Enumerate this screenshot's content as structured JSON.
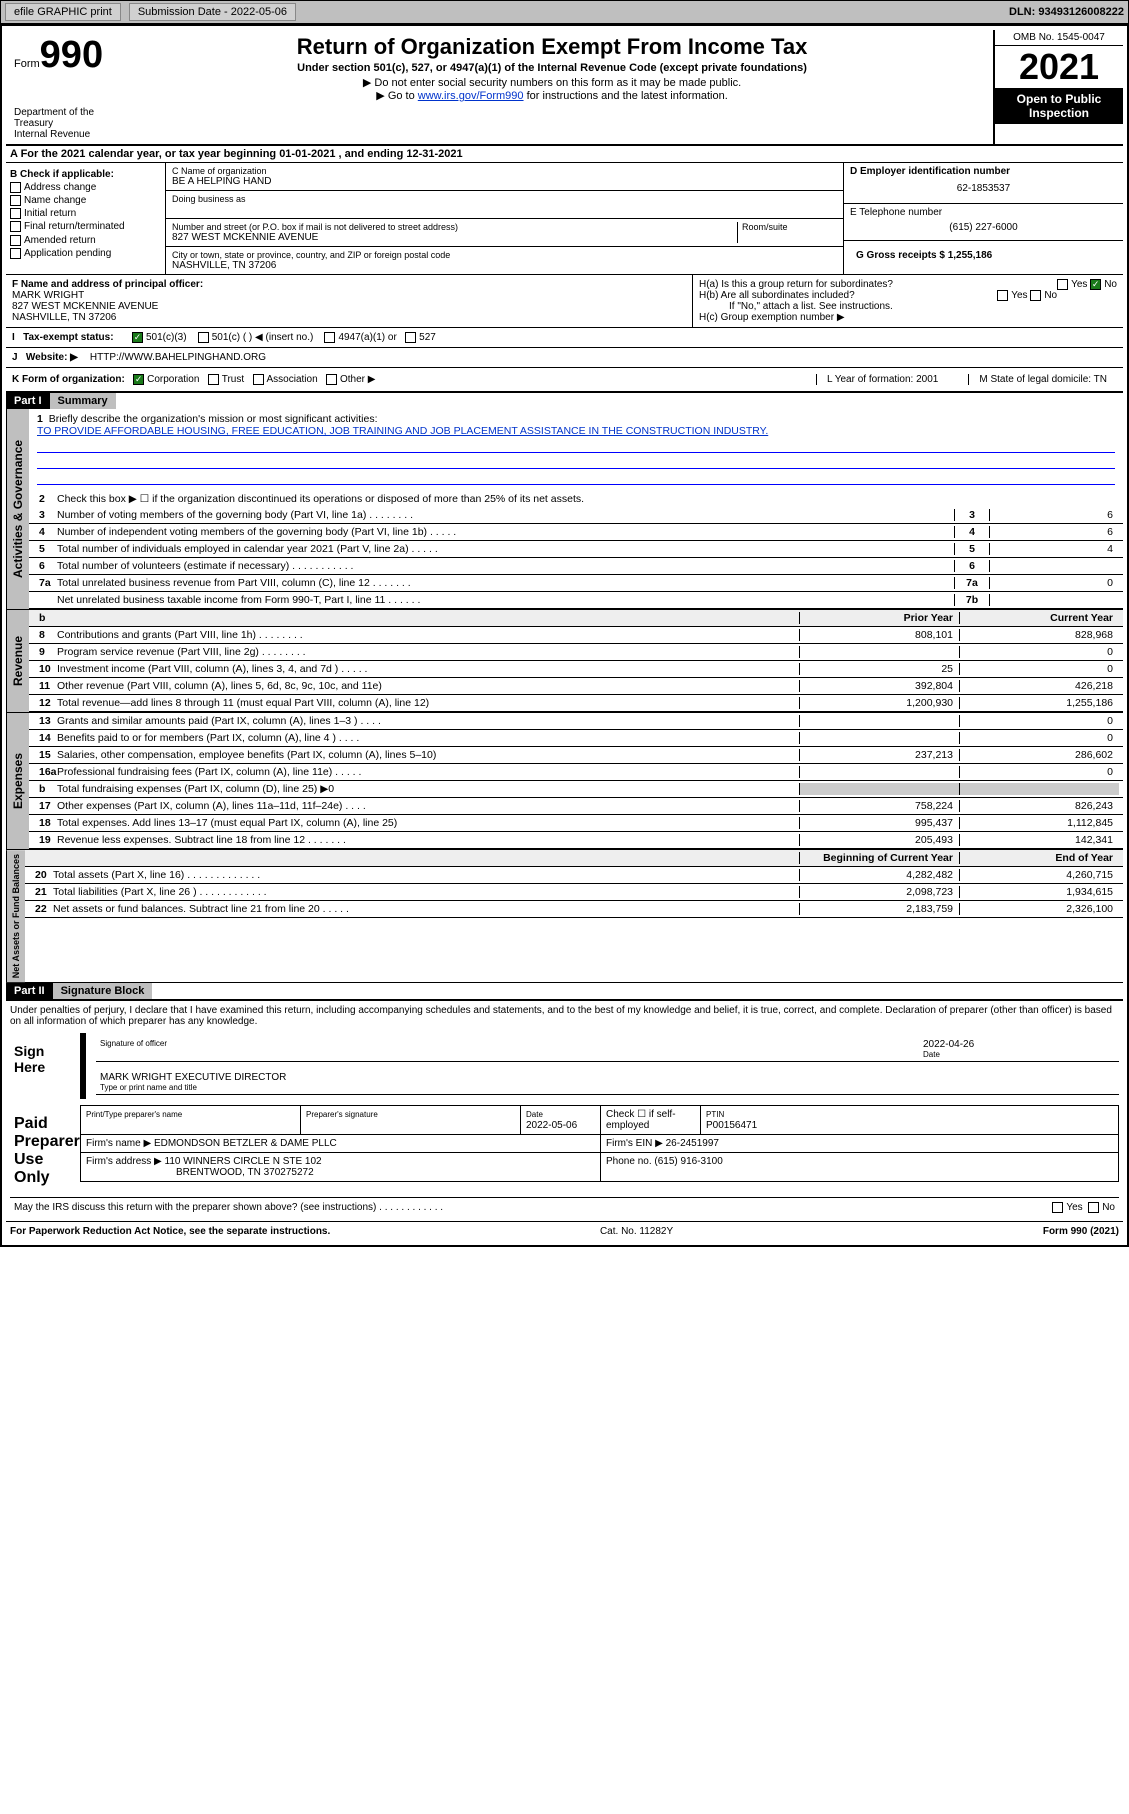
{
  "topbar": {
    "efile": "efile GRAPHIC print",
    "subdate_label": "Submission Date - 2022-05-06",
    "dln": "DLN: 93493126008222"
  },
  "header": {
    "form_label": "Form",
    "form_num": "990",
    "title": "Return of Organization Exempt From Income Tax",
    "subtitle": "Under section 501(c), 527, or 4947(a)(1) of the Internal Revenue Code (except private foundations)",
    "note1": "▶ Do not enter social security numbers on this form as it may be made public.",
    "note2_pre": "▶ Go to ",
    "note2_link": "www.irs.gov/Form990",
    "note2_post": " for instructions and the latest information.",
    "omb": "OMB No. 1545-0047",
    "year": "2021",
    "inspect": "Open to Public Inspection",
    "dept": "Department of the Treasury\nInternal Revenue Service"
  },
  "section_a": "A For the 2021 calendar year, or tax year beginning 01-01-2021    , and ending 12-31-2021",
  "col_b": {
    "title": "B Check if applicable:",
    "items": [
      "Address change",
      "Name change",
      "Initial return",
      "Final return/terminated",
      "Amended return",
      "Application pending"
    ]
  },
  "col_c": {
    "name_label": "C Name of organization",
    "name": "BE A HELPING HAND",
    "dba_label": "Doing business as",
    "addr_label": "Number and street (or P.O. box if mail is not delivered to street address)",
    "room_label": "Room/suite",
    "addr": "827 WEST MCKENNIE AVENUE",
    "city_label": "City or town, state or province, country, and ZIP or foreign postal code",
    "city": "NASHVILLE, TN  37206"
  },
  "col_d": {
    "ein_label": "D Employer identification number",
    "ein": "62-1853537",
    "phone_label": "E Telephone number",
    "phone": "(615) 227-6000",
    "gross_label": "G Gross receipts $ 1,255,186"
  },
  "row_f": {
    "label": "F Name and address of principal officer:",
    "name": "MARK WRIGHT",
    "addr1": "827 WEST MCKENNIE AVENUE",
    "addr2": "NASHVILLE, TN  37206"
  },
  "row_h": {
    "a": "H(a)  Is this a group return for subordinates?",
    "a_no": "No",
    "b": "H(b)  Are all subordinates included?",
    "b_note": "If \"No,\" attach a list. See instructions.",
    "c": "H(c)  Group exemption number ▶"
  },
  "row_i": {
    "label": "Tax-exempt status:",
    "opts": [
      "501(c)(3)",
      "501(c) (  ) ◀ (insert no.)",
      "4947(a)(1) or",
      "527"
    ]
  },
  "row_j": {
    "label": "Website: ▶",
    "url": "HTTP://WWW.BAHELPINGHAND.ORG"
  },
  "row_k": {
    "label": "K Form of organization:",
    "opts": [
      "Corporation",
      "Trust",
      "Association",
      "Other ▶"
    ],
    "l": "L Year of formation: 2001",
    "m": "M State of legal domicile: TN"
  },
  "part1": {
    "hdr": "Part I",
    "title": "Summary",
    "q1": "Briefly describe the organization's mission or most significant activities:",
    "mission": "TO PROVIDE AFFORDABLE HOUSING, FREE EDUCATION, JOB TRAINING AND JOB PLACEMENT ASSISTANCE IN THE CONSTRUCTION INDUSTRY.",
    "q2": "Check this box ▶ ☐  if the organization discontinued its operations or disposed of more than 25% of its net assets.",
    "tabs": {
      "gov": "Activities & Governance",
      "rev": "Revenue",
      "exp": "Expenses",
      "net": "Net Assets or Fund Balances"
    },
    "lines_gov": [
      {
        "n": "3",
        "t": "Number of voting members of the governing body (Part VI, line 1a)  .   .   .   .   .   .   .   .",
        "b": "3",
        "v": "6"
      },
      {
        "n": "4",
        "t": "Number of independent voting members of the governing body (Part VI, line 1b)  .   .   .   .   .",
        "b": "4",
        "v": "6"
      },
      {
        "n": "5",
        "t": "Total number of individuals employed in calendar year 2021 (Part V, line 2a)  .   .   .   .   .",
        "b": "5",
        "v": "4"
      },
      {
        "n": "6",
        "t": "Total number of volunteers (estimate if necessary)  .   .   .   .   .   .   .   .   .   .   .",
        "b": "6",
        "v": ""
      },
      {
        "n": "7a",
        "t": "Total unrelated business revenue from Part VIII, column (C), line 12  .   .   .   .   .   .   .",
        "b": "7a",
        "v": "0"
      },
      {
        "n": "",
        "t": "Net unrelated business taxable income from Form 990-T, Part I, line 11  .   .   .   .   .   .",
        "b": "7b",
        "v": ""
      }
    ],
    "col_hdrs": {
      "py": "Prior Year",
      "cy": "Current Year"
    },
    "lines_rev": [
      {
        "n": "8",
        "t": "Contributions and grants (Part VIII, line 1h)  .   .   .   .   .   .   .   .",
        "py": "808,101",
        "cy": "828,968"
      },
      {
        "n": "9",
        "t": "Program service revenue (Part VIII, line 2g)  .   .   .   .   .   .   .   .",
        "py": "",
        "cy": "0"
      },
      {
        "n": "10",
        "t": "Investment income (Part VIII, column (A), lines 3, 4, and 7d )  .   .   .   .   .",
        "py": "25",
        "cy": "0"
      },
      {
        "n": "11",
        "t": "Other revenue (Part VIII, column (A), lines 5, 6d, 8c, 9c, 10c, and 11e)",
        "py": "392,804",
        "cy": "426,218"
      },
      {
        "n": "12",
        "t": "Total revenue—add lines 8 through 11 (must equal Part VIII, column (A), line 12)",
        "py": "1,200,930",
        "cy": "1,255,186"
      }
    ],
    "lines_exp": [
      {
        "n": "13",
        "t": "Grants and similar amounts paid (Part IX, column (A), lines 1–3 )  .   .   .   .",
        "py": "",
        "cy": "0"
      },
      {
        "n": "14",
        "t": "Benefits paid to or for members (Part IX, column (A), line 4 )  .   .   .   .",
        "py": "",
        "cy": "0"
      },
      {
        "n": "15",
        "t": "Salaries, other compensation, employee benefits (Part IX, column (A), lines 5–10)",
        "py": "237,213",
        "cy": "286,602"
      },
      {
        "n": "16a",
        "t": "Professional fundraising fees (Part IX, column (A), line 11e)  .   .   .   .   .",
        "py": "",
        "cy": "0"
      },
      {
        "n": "b",
        "t": "Total fundraising expenses (Part IX, column (D), line 25) ▶0",
        "py": "—",
        "cy": "—"
      },
      {
        "n": "17",
        "t": "Other expenses (Part IX, column (A), lines 11a–11d, 11f–24e)  .   .   .   .",
        "py": "758,224",
        "cy": "826,243"
      },
      {
        "n": "18",
        "t": "Total expenses. Add lines 13–17 (must equal Part IX, column (A), line 25)",
        "py": "995,437",
        "cy": "1,112,845"
      },
      {
        "n": "19",
        "t": "Revenue less expenses. Subtract line 18 from line 12  .   .   .   .   .   .   .",
        "py": "205,493",
        "cy": "142,341"
      }
    ],
    "col_hdrs2": {
      "boy": "Beginning of Current Year",
      "eoy": "End of Year"
    },
    "lines_net": [
      {
        "n": "20",
        "t": "Total assets (Part X, line 16)  .   .   .   .   .   .   .   .   .   .   .   .   .",
        "py": "4,282,482",
        "cy": "4,260,715"
      },
      {
        "n": "21",
        "t": "Total liabilities (Part X, line 26 )  .   .   .   .   .   .   .   .   .   .   .   .",
        "py": "2,098,723",
        "cy": "1,934,615"
      },
      {
        "n": "22",
        "t": "Net assets or fund balances. Subtract line 21 from line 20  .   .   .   .   .",
        "py": "2,183,759",
        "cy": "2,326,100"
      }
    ]
  },
  "part2": {
    "hdr": "Part II",
    "title": "Signature Block",
    "decl": "Under penalties of perjury, I declare that I have examined this return, including accompanying schedules and statements, and to the best of my knowledge and belief, it is true, correct, and complete. Declaration of preparer (other than officer) is based on all information of which preparer has any knowledge.",
    "sign_here": "Sign Here",
    "sig_officer": "Signature of officer",
    "sig_date": "2022-04-26",
    "sig_date_label": "Date",
    "officer_name": "MARK WRIGHT  EXECUTIVE DIRECTOR",
    "officer_label": "Type or print name and title",
    "paid": "Paid Preparer Use Only",
    "prep_name_label": "Print/Type preparer's name",
    "prep_sig_label": "Preparer's signature",
    "prep_date_label": "Date",
    "prep_date": "2022-05-06",
    "check_label": "Check ☐ if self-employed",
    "ptin_label": "PTIN",
    "ptin": "P00156471",
    "firm_name_label": "Firm's name    ▶",
    "firm_name": "EDMONDSON BETZLER & DAME PLLC",
    "firm_ein_label": "Firm's EIN ▶",
    "firm_ein": "26-2451997",
    "firm_addr_label": "Firm's address ▶",
    "firm_addr": "110 WINNERS CIRCLE N STE 102",
    "firm_city": "BRENTWOOD, TN  370275272",
    "firm_phone_label": "Phone no.",
    "firm_phone": "(615) 916-3100",
    "discuss": "May the IRS discuss this return with the preparer shown above? (see instructions)  .   .   .   .   .   .   .   .   .   .   .   .",
    "yes": "Yes",
    "no": "No"
  },
  "footer": {
    "left": "For Paperwork Reduction Act Notice, see the separate instructions.",
    "mid": "Cat. No. 11282Y",
    "right": "Form 990 (2021)"
  }
}
